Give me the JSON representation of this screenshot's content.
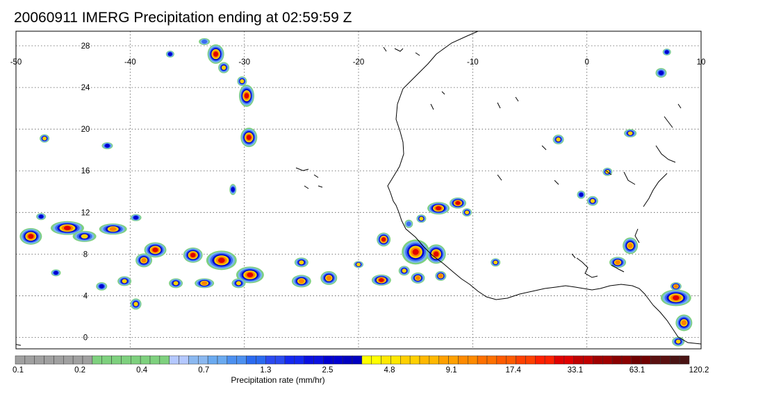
{
  "title": "20060911 IMERG Precipitation ending at 02:59:59 Z",
  "map": {
    "lon_ticks": [
      "-50",
      "-40",
      "-30",
      "-20",
      "-10",
      "0",
      "10"
    ],
    "lat_ticks": [
      "28",
      "24",
      "20",
      "16",
      "12",
      "8",
      "4",
      "0"
    ],
    "lon_range": [
      -50,
      10
    ],
    "lat_range": [
      -0.5,
      30
    ],
    "grid": "dotted",
    "coastline_color": "#000000"
  },
  "colorbar": {
    "title": "Precipitation rate (mm/hr)",
    "labels": [
      "0.1",
      "0.2",
      "0.4",
      "0.7",
      "1.3",
      "2.5",
      "4.8",
      "9.1",
      "17.4",
      "33.1",
      "63.1",
      "120.2"
    ],
    "colors": [
      "#a0a0a0",
      "#a0a0a0",
      "#a0a0a0",
      "#a0a0a0",
      "#a0a0a0",
      "#a0a0a0",
      "#a0a0a0",
      "#a0a0a0",
      "#7ed17e",
      "#7ed17e",
      "#7ed17e",
      "#7ed17e",
      "#7ed17e",
      "#7ed17e",
      "#7ed17e",
      "#7ed17e",
      "#b4c8ff",
      "#b4c8ff",
      "#8ab8f0",
      "#8ab8f0",
      "#6aaaf0",
      "#6aaaf0",
      "#4c90f0",
      "#4c90f0",
      "#2a6af0",
      "#2a6af0",
      "#2a4af0",
      "#2a4af0",
      "#1428f0",
      "#1428f0",
      "#0a10e0",
      "#0a10e0",
      "#0000d0",
      "#0000d0",
      "#0000c0",
      "#0000c0",
      "#ffff00",
      "#ffff00",
      "#ffe800",
      "#ffe800",
      "#ffd000",
      "#ffd000",
      "#ffb800",
      "#ffb800",
      "#ffa000",
      "#ffa000",
      "#ff8a00",
      "#ff8a00",
      "#ff7000",
      "#ff7000",
      "#ff5a00",
      "#ff5a00",
      "#ff4000",
      "#ff4000",
      "#ff2000",
      "#ff2000",
      "#e00000",
      "#e00000",
      "#c00000",
      "#c00000",
      "#a00000",
      "#a00000",
      "#8a0000",
      "#8a0000",
      "#700000",
      "#700000",
      "#5a1010",
      "#5a1010",
      "#4a1414",
      "#4a1414"
    ]
  },
  "precip_cells": [
    {
      "lon": -48.7,
      "lat": 10.3,
      "rx": 14,
      "ry": 10,
      "level": 5
    },
    {
      "lon": -45.5,
      "lat": 11.1,
      "rx": 22,
      "ry": 8,
      "level": 5
    },
    {
      "lon": -41.5,
      "lat": 11.0,
      "rx": 18,
      "ry": 6,
      "level": 4
    },
    {
      "lon": -44.0,
      "lat": 10.3,
      "rx": 15,
      "ry": 6,
      "level": 3
    },
    {
      "lon": -37.8,
      "lat": 9.0,
      "rx": 14,
      "ry": 9,
      "level": 5
    },
    {
      "lon": -34.5,
      "lat": 8.5,
      "rx": 12,
      "ry": 9,
      "level": 5
    },
    {
      "lon": -32.0,
      "lat": 8.0,
      "rx": 20,
      "ry": 12,
      "level": 5
    },
    {
      "lon": -29.5,
      "lat": 6.6,
      "rx": 18,
      "ry": 10,
      "level": 5
    },
    {
      "lon": -33.5,
      "lat": 5.8,
      "rx": 12,
      "ry": 5,
      "level": 4
    },
    {
      "lon": -38.8,
      "lat": 8.0,
      "rx": 10,
      "ry": 8,
      "level": 4
    },
    {
      "lon": -36.0,
      "lat": 5.8,
      "rx": 8,
      "ry": 5,
      "level": 3
    },
    {
      "lon": -30.5,
      "lat": 5.8,
      "rx": 8,
      "ry": 5,
      "level": 3
    },
    {
      "lon": -25.0,
      "lat": 6.0,
      "rx": 12,
      "ry": 7,
      "level": 4
    },
    {
      "lon": -22.6,
      "lat": 6.3,
      "rx": 10,
      "ry": 8,
      "level": 4
    },
    {
      "lon": -25.0,
      "lat": 7.8,
      "rx": 8,
      "ry": 5,
      "level": 3
    },
    {
      "lon": -39.5,
      "lat": 3.8,
      "rx": 6,
      "ry": 6,
      "level": 3
    },
    {
      "lon": -40.5,
      "lat": 6.0,
      "rx": 8,
      "ry": 5,
      "level": 3
    },
    {
      "lon": -32.5,
      "lat": 27.8,
      "rx": 10,
      "ry": 12,
      "level": 5
    },
    {
      "lon": -31.8,
      "lat": 26.5,
      "rx": 6,
      "ry": 6,
      "level": 3
    },
    {
      "lon": -29.8,
      "lat": 23.8,
      "rx": 9,
      "ry": 14,
      "level": 5
    },
    {
      "lon": -30.2,
      "lat": 25.2,
      "rx": 5,
      "ry": 5,
      "level": 3
    },
    {
      "lon": -29.6,
      "lat": 19.8,
      "rx": 10,
      "ry": 12,
      "level": 5
    },
    {
      "lon": -47.5,
      "lat": 19.7,
      "rx": 5,
      "ry": 4,
      "level": 3
    },
    {
      "lon": -42.0,
      "lat": 19.0,
      "rx": 6,
      "ry": 3,
      "level": 2
    },
    {
      "lon": -17.8,
      "lat": 10.0,
      "rx": 8,
      "ry": 8,
      "level": 5
    },
    {
      "lon": -15.0,
      "lat": 8.8,
      "rx": 18,
      "ry": 16,
      "level": 5
    },
    {
      "lon": -13.2,
      "lat": 8.6,
      "rx": 12,
      "ry": 12,
      "level": 5
    },
    {
      "lon": -18.0,
      "lat": 6.1,
      "rx": 12,
      "ry": 6,
      "level": 5
    },
    {
      "lon": -14.8,
      "lat": 6.3,
      "rx": 8,
      "ry": 6,
      "level": 4
    },
    {
      "lon": -12.8,
      "lat": 6.5,
      "rx": 6,
      "ry": 5,
      "level": 4
    },
    {
      "lon": -16.0,
      "lat": 7.0,
      "rx": 6,
      "ry": 5,
      "level": 3
    },
    {
      "lon": -20.0,
      "lat": 7.6,
      "rx": 5,
      "ry": 3,
      "level": 3
    },
    {
      "lon": -13.0,
      "lat": 13.0,
      "rx": 14,
      "ry": 7,
      "level": 5
    },
    {
      "lon": -11.3,
      "lat": 13.5,
      "rx": 10,
      "ry": 6,
      "level": 5
    },
    {
      "lon": -10.5,
      "lat": 12.6,
      "rx": 5,
      "ry": 4,
      "level": 3
    },
    {
      "lon": -14.5,
      "lat": 12.0,
      "rx": 5,
      "ry": 4,
      "level": 3
    },
    {
      "lon": 3.8,
      "lat": 9.4,
      "rx": 9,
      "ry": 10,
      "level": 4
    },
    {
      "lon": 2.7,
      "lat": 7.8,
      "rx": 10,
      "ry": 6,
      "level": 4
    },
    {
      "lon": -8.0,
      "lat": 7.8,
      "rx": 5,
      "ry": 4,
      "level": 3
    },
    {
      "lon": 7.8,
      "lat": 4.4,
      "rx": 20,
      "ry": 10,
      "level": 5
    },
    {
      "lon": 7.8,
      "lat": 5.5,
      "rx": 6,
      "ry": 4,
      "level": 4
    },
    {
      "lon": 8.5,
      "lat": 2.0,
      "rx": 10,
      "ry": 10,
      "level": 4
    },
    {
      "lon": 8.0,
      "lat": 0.2,
      "rx": 7,
      "ry": 5,
      "level": 3
    },
    {
      "lon": 3.8,
      "lat": 20.2,
      "rx": 7,
      "ry": 4,
      "level": 3
    },
    {
      "lon": -2.5,
      "lat": 19.6,
      "rx": 6,
      "ry": 5,
      "level": 3
    },
    {
      "lon": 1.8,
      "lat": 16.5,
      "rx": 5,
      "ry": 4,
      "level": 3
    },
    {
      "lon": 0.5,
      "lat": 13.7,
      "rx": 6,
      "ry": 5,
      "level": 3
    },
    {
      "lon": -0.5,
      "lat": 14.3,
      "rx": 4,
      "ry": 4,
      "level": 2
    },
    {
      "lon": 7.0,
      "lat": 28.0,
      "rx": 4,
      "ry": 3,
      "level": 2
    },
    {
      "lon": 6.5,
      "lat": 26.0,
      "rx": 6,
      "ry": 5,
      "level": 2
    },
    {
      "lon": -33.5,
      "lat": 29.0,
      "rx": 6,
      "ry": 3,
      "level": 1
    },
    {
      "lon": -36.5,
      "lat": 27.8,
      "rx": 4,
      "ry": 3,
      "level": 2
    },
    {
      "lon": -31.0,
      "lat": 14.8,
      "rx": 3,
      "ry": 6,
      "level": 2
    },
    {
      "lon": -42.5,
      "lat": 5.5,
      "rx": 6,
      "ry": 4,
      "level": 2
    },
    {
      "lon": -46.5,
      "lat": 6.8,
      "rx": 5,
      "ry": 3,
      "level": 2
    },
    {
      "lon": -47.8,
      "lat": 12.2,
      "rx": 5,
      "ry": 3,
      "level": 2
    },
    {
      "lon": -39.5,
      "lat": 12.1,
      "rx": 6,
      "ry": 3,
      "level": 2
    },
    {
      "lon": -15.6,
      "lat": 11.5,
      "rx": 4,
      "ry": 4,
      "level": 1
    }
  ]
}
